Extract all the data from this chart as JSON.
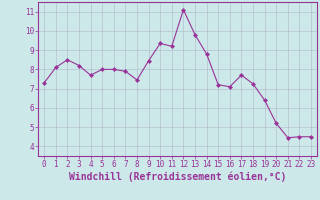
{
  "x": [
    0,
    1,
    2,
    3,
    4,
    5,
    6,
    7,
    8,
    9,
    10,
    11,
    12,
    13,
    14,
    15,
    16,
    17,
    18,
    19,
    20,
    21,
    22,
    23
  ],
  "y": [
    7.3,
    8.1,
    8.5,
    8.2,
    7.7,
    8.0,
    8.0,
    7.9,
    7.45,
    8.45,
    9.35,
    9.2,
    11.1,
    9.8,
    8.8,
    7.2,
    7.1,
    7.7,
    7.25,
    6.4,
    5.2,
    4.45,
    4.5,
    4.5
  ],
  "line_color": "#993399",
  "marker": "D",
  "marker_size": 2,
  "bg_color": "#cce8e8",
  "grid_color": "#b0b8cc",
  "xlabel": "Windchill (Refroidissement éolien,°C)",
  "xlim": [
    -0.5,
    23.5
  ],
  "ylim": [
    3.5,
    11.5
  ],
  "yticks": [
    4,
    5,
    6,
    7,
    8,
    9,
    10,
    11
  ],
  "xticks": [
    0,
    1,
    2,
    3,
    4,
    5,
    6,
    7,
    8,
    9,
    10,
    11,
    12,
    13,
    14,
    15,
    16,
    17,
    18,
    19,
    20,
    21,
    22,
    23
  ],
  "tick_color": "#993399",
  "label_color": "#993399",
  "spine_color": "#993399",
  "font_size": 5.5,
  "xlabel_fontsize": 7.0,
  "linewidth": 0.8
}
